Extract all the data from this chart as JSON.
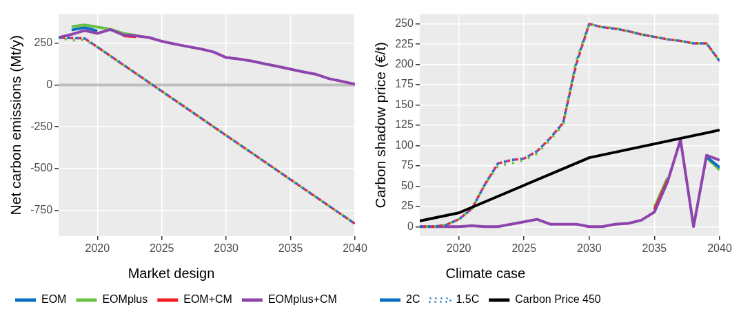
{
  "chart_data": [
    {
      "type": "line",
      "ylabel": "Net carbon emissions (Mt/y)",
      "legend_title": "Market design",
      "legend": "bottom",
      "grid": true,
      "marker": "none",
      "xlim": [
        2017,
        2040
      ],
      "ylim": [
        -905,
        425
      ],
      "xticks": [
        2020,
        2025,
        2030,
        2035,
        2040
      ],
      "yticks": [
        -750,
        -500,
        -250,
        0,
        250
      ],
      "x": [
        2017,
        2018,
        2019,
        2020,
        2021,
        2022,
        2023,
        2024,
        2025,
        2026,
        2027,
        2028,
        2029,
        2030,
        2031,
        2032,
        2033,
        2034,
        2035,
        2036,
        2037,
        2038,
        2039,
        2040
      ],
      "ref_lines": [
        {
          "axis": "y",
          "value": 0,
          "color": "#bebebe"
        }
      ],
      "series": [
        {
          "name": "EOM",
          "color": "#0a6fc2",
          "line_style": "solid",
          "values": [
            null,
            330,
            345,
            325,
            null,
            null,
            null,
            null,
            null,
            null,
            null,
            null,
            null,
            null,
            null,
            null,
            null,
            null,
            null,
            null,
            null,
            null,
            null,
            null
          ]
        },
        {
          "name": "EOMplus",
          "color": "#6abf45",
          "line_style": "solid",
          "values": [
            null,
            350,
            360,
            348,
            335,
            310,
            298,
            null,
            null,
            null,
            null,
            null,
            null,
            null,
            null,
            null,
            null,
            null,
            null,
            null,
            null,
            null,
            null,
            null
          ]
        },
        {
          "name": "EOM+CM",
          "color": "#ee1c25",
          "line_style": "solid",
          "values": [
            null,
            null,
            null,
            null,
            null,
            295,
            290,
            null,
            null,
            null,
            null,
            null,
            null,
            null,
            null,
            null,
            null,
            null,
            null,
            null,
            null,
            null,
            null,
            null
          ]
        },
        {
          "name": "EOMplus+CM",
          "color": "#8e44ad",
          "line_style": "solid",
          "values": [
            285,
            304,
            327,
            310,
            333,
            301,
            295,
            285,
            263,
            246,
            231,
            217,
            199,
            165,
            156,
            144,
            127,
            112,
            95,
            79,
            64,
            38,
            22,
            5
          ]
        },
        {
          "color": "#0a6fc2",
          "line_style": "dotted",
          "values": [
            285,
            282,
            280,
            228,
            175,
            122,
            69,
            16,
            -37,
            -90,
            -143,
            -196,
            -249,
            -302,
            -355,
            -408,
            -461,
            -514,
            -567,
            -620,
            -673,
            -726,
            -779,
            -832
          ]
        },
        {
          "color": "#6abf45",
          "line_style": "dotted",
          "values": [
            285,
            268,
            272,
            228,
            175,
            122,
            69,
            16,
            -37,
            -90,
            -143,
            -196,
            -249,
            -302,
            -355,
            -408,
            -461,
            -514,
            -567,
            -620,
            -673,
            -726,
            -779,
            -832
          ]
        },
        {
          "color": "#ee1c25",
          "line_style": "dotted",
          "values": [
            285,
            282,
            280,
            228,
            175,
            122,
            69,
            16,
            -37,
            -90,
            -143,
            -196,
            -249,
            -302,
            -355,
            -408,
            -461,
            -514,
            -567,
            -620,
            -673,
            -726,
            -779,
            -832
          ]
        },
        {
          "color": "#8e44ad",
          "line_style": "dotted",
          "values": [
            285,
            282,
            280,
            228,
            175,
            122,
            69,
            16,
            -37,
            -90,
            -143,
            -196,
            -249,
            -302,
            -355,
            -408,
            -461,
            -514,
            -567,
            -620,
            -673,
            -726,
            -779,
            -832
          ]
        }
      ]
    },
    {
      "type": "line",
      "ylabel": "Carbon shadow price (€/t)",
      "legend_title": "Climate case",
      "legend": "bottom",
      "grid": true,
      "marker": "none",
      "xlim": [
        2017,
        2040
      ],
      "ylim": [
        -11.5,
        262
      ],
      "xticks": [
        2020,
        2025,
        2030,
        2035,
        2040
      ],
      "yticks": [
        0,
        25,
        50,
        75,
        100,
        125,
        150,
        175,
        200,
        225,
        250
      ],
      "x": [
        2017,
        2018,
        2019,
        2020,
        2021,
        2022,
        2023,
        2024,
        2025,
        2026,
        2027,
        2028,
        2029,
        2030,
        2031,
        2032,
        2033,
        2034,
        2035,
        2036,
        2037,
        2038,
        2039,
        2040
      ],
      "series": [
        {
          "color": "#6abf45",
          "line_style": "solid",
          "values": [
            null,
            null,
            null,
            null,
            null,
            null,
            null,
            null,
            null,
            null,
            null,
            null,
            null,
            null,
            null,
            null,
            null,
            null,
            24,
            60,
            null,
            null,
            85,
            70
          ]
        },
        {
          "color": "#ee1c25",
          "line_style": "solid",
          "values": [
            null,
            null,
            null,
            null,
            null,
            null,
            null,
            null,
            null,
            null,
            null,
            null,
            null,
            null,
            null,
            null,
            null,
            null,
            21,
            57,
            null,
            null,
            null,
            null
          ]
        },
        {
          "name": "2C",
          "color": "#0a6fc2",
          "line_style": "solid",
          "values": [
            null,
            null,
            null,
            null,
            null,
            null,
            null,
            null,
            null,
            null,
            null,
            null,
            null,
            null,
            null,
            null,
            null,
            null,
            null,
            null,
            null,
            null,
            86,
            73
          ]
        },
        {
          "color": "#8e44ad",
          "line_style": "solid",
          "values": [
            0,
            0,
            0,
            0,
            1,
            0,
            0,
            3,
            6,
            9,
            3,
            3,
            3,
            0,
            0,
            3,
            4,
            8,
            18,
            55,
            107,
            0,
            88,
            82
          ]
        },
        {
          "name": "1.5C",
          "color": "#0a6fc2",
          "line_style": "dotted",
          "values": [
            0,
            0,
            2,
            9,
            22,
            52,
            78,
            82,
            84,
            93,
            109,
            128,
            202,
            250,
            246,
            244,
            241,
            237,
            234,
            231,
            229,
            226,
            226,
            204
          ]
        },
        {
          "color": "#6abf45",
          "line_style": "dotted",
          "values": [
            0,
            0,
            2,
            9,
            22,
            52,
            75,
            78,
            82,
            90,
            107,
            126,
            205,
            250,
            246,
            245,
            241,
            237,
            234,
            231,
            229,
            226,
            226,
            204
          ]
        },
        {
          "color": "#ee1c25",
          "line_style": "dotted",
          "values": [
            0,
            0,
            2,
            9,
            22,
            52,
            78,
            82,
            84,
            93,
            109,
            128,
            200,
            250,
            246,
            244,
            241,
            237,
            234,
            231,
            229,
            226,
            226,
            204
          ]
        },
        {
          "color": "#8e44ad",
          "line_style": "dotted",
          "values": [
            0,
            0,
            2,
            9,
            22,
            52,
            78,
            82,
            84,
            93,
            109,
            128,
            200,
            250,
            246,
            244,
            241,
            237,
            234,
            231,
            229,
            226,
            226,
            204
          ]
        },
        {
          "name": "Carbon Price 450",
          "color": "#000000",
          "line_style": "solid",
          "x": [
            2017,
            2020,
            2030,
            2040
          ],
          "values": [
            7,
            17,
            85,
            119
          ]
        }
      ]
    }
  ]
}
